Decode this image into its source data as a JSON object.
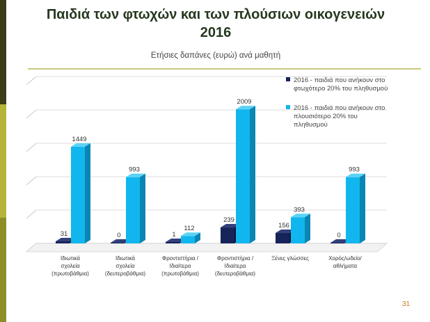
{
  "slide": {
    "title_line1": "Παιδιά των φτωχών και των πλούσιων οικογενειών",
    "title_line2": "2016",
    "slide_number": "31"
  },
  "colors": {
    "poor": "#17245a",
    "rich": "#12b6ee"
  },
  "chart_data": {
    "type": "bar",
    "title": "Ετήσιες δαπάνες (ευρώ) ανά μαθητή",
    "categories": [
      [
        "Ιδιωτικά",
        "σχολεία",
        "(πρωτοβάθμια)"
      ],
      [
        "Ιδιωτικά",
        "σχολεία",
        "(δευτεροβάθμια)"
      ],
      [
        "Φροντιστήρια /",
        "Ιδιαίτερα",
        "(πρωτοβάθμια)"
      ],
      [
        "Φροντιστήρια /",
        "Ιδιαίτερα",
        "(δευτεροβάθμια)"
      ],
      [
        "Ξένες γλώσσες"
      ],
      [
        "Χορός/ωδείο/",
        "αθλήματα"
      ]
    ],
    "series": [
      {
        "name": "2016 - παιδιά που ανήκουν στο φτωχότερο 20% του πληθυσμού",
        "legend_lines": [
          "2016 - παιδιά που ανήκουν στο",
          "φτωχότερο 20% του πληθυσμού"
        ],
        "values": [
          31,
          0,
          1,
          239,
          156,
          0
        ]
      },
      {
        "name": "2016 - παιδιά που ανήκουν στο πλουσιότερο 20% του πληθυσμού",
        "legend_lines": [
          "2016 - παιδιά που ανήκουν στο",
          "πλουσιότερο 20% του",
          "πληθυσμού"
        ],
        "values": [
          1449,
          993,
          112,
          2009,
          393,
          993
        ]
      }
    ],
    "ylim": [
      0,
      2500
    ],
    "grid": true,
    "legend": "top-right"
  }
}
